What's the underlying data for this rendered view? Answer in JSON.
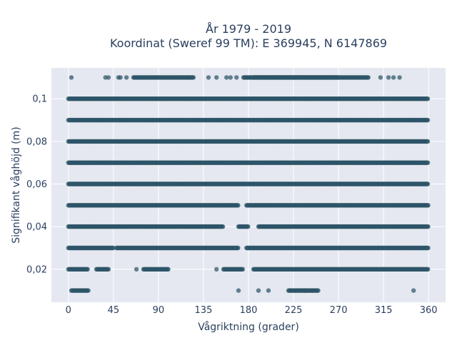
{
  "chart_data": {
    "type": "scatter",
    "title_lines": [
      "År 1979 - 2019",
      "Koordinat (Sweref 99 TM): E 369945, N 6147869"
    ],
    "xlabel": "Vågriktning (grader)",
    "ylabel": "Signifikant våghöjd (m)",
    "xlim": [
      -17,
      377
    ],
    "ylim": [
      0.0045,
      0.1145
    ],
    "x_ticks": [
      0,
      45,
      90,
      135,
      180,
      225,
      270,
      315,
      360
    ],
    "x_tick_labels": [
      "0",
      "45",
      "90",
      "135",
      "180",
      "225",
      "270",
      "315",
      "360"
    ],
    "y_ticks": [
      0.02,
      0.04,
      0.06,
      0.08,
      0.1
    ],
    "y_tick_labels": [
      "0,02",
      "0,04",
      "0,06",
      "0,08",
      "0,1"
    ],
    "grid": true,
    "marker_color": "#2e5468",
    "background_color": "#e5e8f0",
    "point_bands": [
      {
        "y": 0.01,
        "segments": [
          [
            3,
            20
          ],
          [
            220,
            250
          ]
        ],
        "isolated": [
          170,
          190,
          200,
          236,
          345
        ]
      },
      {
        "y": 0.02,
        "segments": [
          [
            0,
            20
          ],
          [
            28,
            40
          ],
          [
            75,
            100
          ],
          [
            155,
            175
          ],
          [
            185,
            360
          ]
        ],
        "isolated": [
          68,
          148
        ]
      },
      {
        "y": 0.03,
        "segments": [
          [
            0,
            45
          ],
          [
            48,
            170
          ],
          [
            178,
            360
          ]
        ],
        "isolated": []
      },
      {
        "y": 0.04,
        "segments": [
          [
            0,
            155
          ],
          [
            170,
            180
          ],
          [
            190,
            360
          ]
        ],
        "isolated": []
      },
      {
        "y": 0.05,
        "segments": [
          [
            0,
            170
          ],
          [
            178,
            360
          ]
        ],
        "isolated": []
      },
      {
        "y": 0.06,
        "segments": [
          [
            0,
            360
          ]
        ],
        "isolated": []
      },
      {
        "y": 0.07,
        "segments": [
          [
            0,
            360
          ]
        ],
        "isolated": []
      },
      {
        "y": 0.08,
        "segments": [
          [
            0,
            360
          ]
        ],
        "isolated": []
      },
      {
        "y": 0.09,
        "segments": [
          [
            0,
            360
          ]
        ],
        "isolated": []
      },
      {
        "y": 0.1,
        "segments": [
          [
            0,
            360
          ]
        ],
        "isolated": []
      },
      {
        "y": 0.11,
        "segments": [
          [
            65,
            125
          ],
          [
            175,
            300
          ],
          [
            185,
            270
          ]
        ],
        "isolated": [
          3,
          37,
          40,
          50,
          52,
          58,
          120,
          140,
          148,
          158,
          162,
          168,
          312,
          320,
          325,
          331
        ]
      }
    ]
  }
}
